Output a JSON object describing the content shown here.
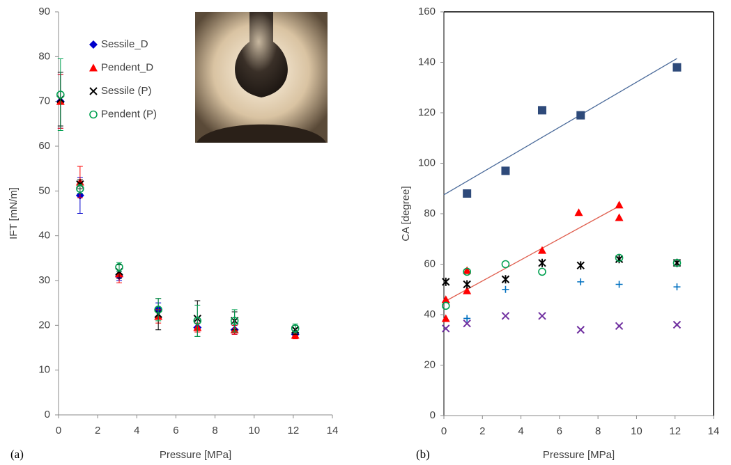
{
  "chart_data": [
    {
      "type": "scatter",
      "panel_label": "(a)",
      "x_label": "Pressure [MPa]",
      "y_label": "IFT [mN/m]",
      "xlim": [
        0,
        14
      ],
      "xticks": [
        0,
        2,
        4,
        6,
        8,
        10,
        12,
        14
      ],
      "ylim": [
        0,
        90
      ],
      "yticks": [
        0,
        10,
        20,
        30,
        40,
        50,
        60,
        70,
        80,
        90
      ],
      "legend": "upper center",
      "frame": false,
      "series": [
        {
          "name": "Sessile_D",
          "color": "#0000cc",
          "marker": "diamond",
          "x": [
            0.1,
            1.1,
            3.1,
            5.1,
            7.1,
            9,
            12.1
          ],
          "values": [
            70,
            49,
            31,
            23.5,
            19.5,
            19,
            18
          ],
          "errors": [
            6,
            4,
            1,
            1.5,
            1,
            1,
            0.8
          ]
        },
        {
          "name": "Pendent_D",
          "color": "#ff0000",
          "marker": "triangle",
          "x": [
            0.1,
            1.1,
            3.1,
            5.1,
            7.1,
            9,
            12.1
          ],
          "values": [
            70,
            52,
            31.5,
            22,
            19.5,
            19,
            17.8
          ],
          "errors": [
            6,
            3.5,
            2,
            1.5,
            1,
            1,
            0.8
          ]
        },
        {
          "name": "Sessile (P)",
          "color": "#000000",
          "marker": "x",
          "x": [
            0.1,
            1.1,
            3.1,
            5.1,
            7.1,
            9,
            12.1
          ],
          "values": [
            70.5,
            51.5,
            32,
            22.5,
            21.5,
            21,
            19
          ],
          "errors": [
            6,
            1,
            1.5,
            3.5,
            4,
            2,
            1
          ]
        },
        {
          "name": "Pendent (P)",
          "color": "#00a050",
          "marker": "circle",
          "x": [
            0.1,
            1.1,
            3.1,
            5.1,
            7.1,
            9,
            12.1
          ],
          "values": [
            71.5,
            50.5,
            33,
            23.5,
            21,
            21,
            19.3
          ],
          "errors": [
            8,
            1,
            1,
            2.5,
            3.5,
            2.5,
            1
          ]
        }
      ]
    },
    {
      "type": "scatter",
      "panel_label": "(b)",
      "x_label": "Pressure [MPa]",
      "y_label": "CA [degree]",
      "xlim": [
        0,
        14
      ],
      "xticks": [
        0,
        2,
        4,
        6,
        8,
        10,
        12,
        14
      ],
      "ylim": [
        0,
        160
      ],
      "yticks": [
        0,
        20,
        40,
        60,
        80,
        100,
        120,
        140,
        160
      ],
      "frame": true,
      "series": [
        {
          "color": "#2e4a7a",
          "marker": "square",
          "x": [
            1.2,
            3.2,
            5.1,
            7.1,
            12.1
          ],
          "values": [
            88,
            97,
            121,
            119,
            138
          ],
          "trend": {
            "color": "#4a6a9a",
            "x": [
              0,
              12.1
            ],
            "values": [
              87.5,
              141.5
            ]
          }
        },
        {
          "color": "#ff0000",
          "marker": "triangle",
          "x": [
            0.1,
            0.1,
            1.2,
            1.2,
            5.1,
            7,
            9.1,
            9.1
          ],
          "values": [
            38.5,
            46,
            57.5,
            49.5,
            65.5,
            80.5,
            83.5,
            78.5
          ],
          "trend": {
            "color": "#e06050",
            "x": [
              0,
              9.1
            ],
            "values": [
              45,
              83
            ]
          }
        },
        {
          "color": "#000000",
          "marker": "asterisk",
          "x": [
            0.1,
            1.2,
            3.2,
            5.1,
            7.1,
            9.1,
            12.1
          ],
          "values": [
            53,
            52,
            54,
            60.5,
            59.5,
            62,
            60.5
          ]
        },
        {
          "color": "#00a050",
          "marker": "circle",
          "x": [
            0.1,
            1.2,
            3.2,
            5.1,
            9.1,
            12.1
          ],
          "values": [
            43.5,
            57,
            60,
            57,
            62.5,
            60.5
          ]
        },
        {
          "color": "#0070c0",
          "marker": "plus",
          "x": [
            1.2,
            3.2,
            7.1,
            9.1,
            12.1
          ],
          "values": [
            38.5,
            50,
            53,
            52,
            51
          ]
        },
        {
          "color": "#7030a0",
          "marker": "x",
          "x": [
            0.1,
            1.2,
            3.2,
            5.1,
            7.1,
            9.1,
            12.1
          ],
          "values": [
            34.5,
            36.5,
            39.5,
            39.5,
            34,
            35.5,
            36
          ]
        }
      ]
    }
  ]
}
